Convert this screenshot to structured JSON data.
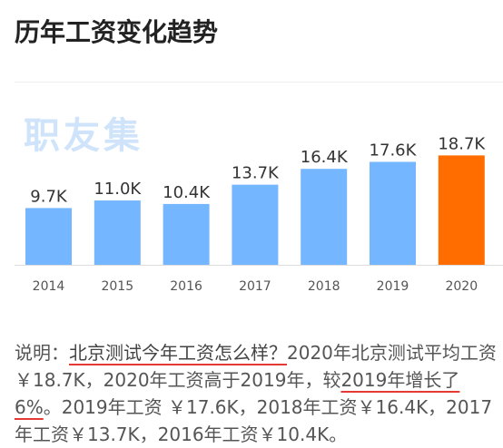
{
  "page": {
    "title": "历年工资变化趋势"
  },
  "watermark": {
    "text": "职友集"
  },
  "colors": {
    "bar": "#74b6ff",
    "bar_highlight": "#ff6d00",
    "axis_line": "#dddddd",
    "label": "#333333",
    "tick": "#555555"
  },
  "chart_data": {
    "type": "bar",
    "categories": [
      "2014",
      "2015",
      "2016",
      "2017",
      "2018",
      "2019",
      "2020"
    ],
    "values": [
      9.7,
      11.0,
      10.4,
      13.7,
      16.4,
      17.6,
      18.7
    ],
    "value_labels": [
      "9.7K",
      "11.0K",
      "10.4K",
      "13.7K",
      "16.4K",
      "17.6K",
      "18.7K"
    ],
    "unit": "K",
    "highlight_index": 6,
    "ylim": [
      0,
      20
    ],
    "title": "",
    "xlabel": "",
    "ylabel": "",
    "grid": false
  },
  "description": {
    "label": "说明：",
    "question": "北京测试今年工资怎么样？",
    "text1": "2020年北京测试平均工资￥18.7K，2020年工资高于2019年，较",
    "highlight": "2019年增长了6%",
    "text2": "。2019年工资 ￥17.6K，2018年工资￥16.4K，2017年工资￥13.7K，2016年工资￥10.4K。"
  }
}
